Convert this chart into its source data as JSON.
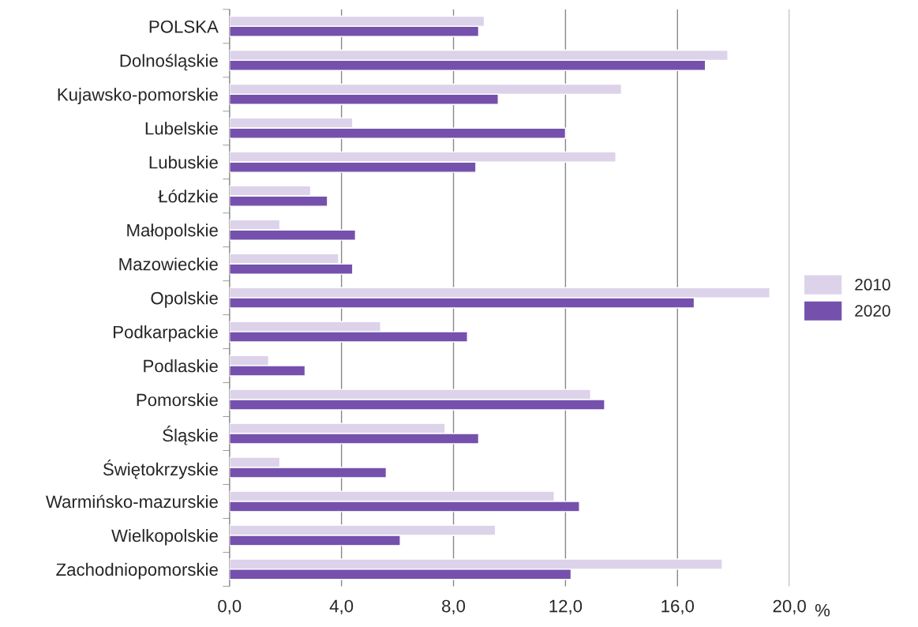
{
  "chart_data": {
    "type": "bar",
    "orientation": "horizontal",
    "xlabel": "%",
    "categories": [
      "POLSKA",
      "Dolnośląskie",
      "Kujawsko-pomorskie",
      "Lubelskie",
      "Lubuskie",
      "Łódzkie",
      "Małopolskie",
      "Mazowieckie",
      "Opolskie",
      "Podkarpackie",
      "Podlaskie",
      "Pomorskie",
      "Śląskie",
      "Świętokrzyskie",
      "Warmińsko-mazurskie",
      "Wielkopolskie",
      "Zachodniopomorskie"
    ],
    "series": [
      {
        "name": "2010",
        "color": "#dcd3ea",
        "values": [
          9.1,
          17.8,
          14.0,
          4.4,
          13.8,
          2.9,
          1.8,
          3.9,
          19.3,
          5.4,
          1.4,
          12.9,
          7.7,
          1.8,
          11.6,
          9.5,
          17.6
        ]
      },
      {
        "name": "2020",
        "color": "#7551ad",
        "values": [
          8.9,
          17.0,
          9.6,
          12.0,
          8.8,
          3.5,
          4.5,
          4.4,
          16.6,
          8.5,
          2.7,
          13.4,
          8.9,
          5.6,
          12.5,
          6.1,
          12.2
        ]
      }
    ],
    "xlim": [
      0,
      20
    ],
    "xticks": [
      {
        "value": 0,
        "label": "0,0"
      },
      {
        "value": 4,
        "label": "4,0"
      },
      {
        "value": 8,
        "label": "8,0"
      },
      {
        "value": 12,
        "label": "12,0"
      },
      {
        "value": 16,
        "label": "16,0"
      },
      {
        "value": 20,
        "label": "20,0"
      }
    ],
    "grid": "x",
    "legend": "right"
  }
}
